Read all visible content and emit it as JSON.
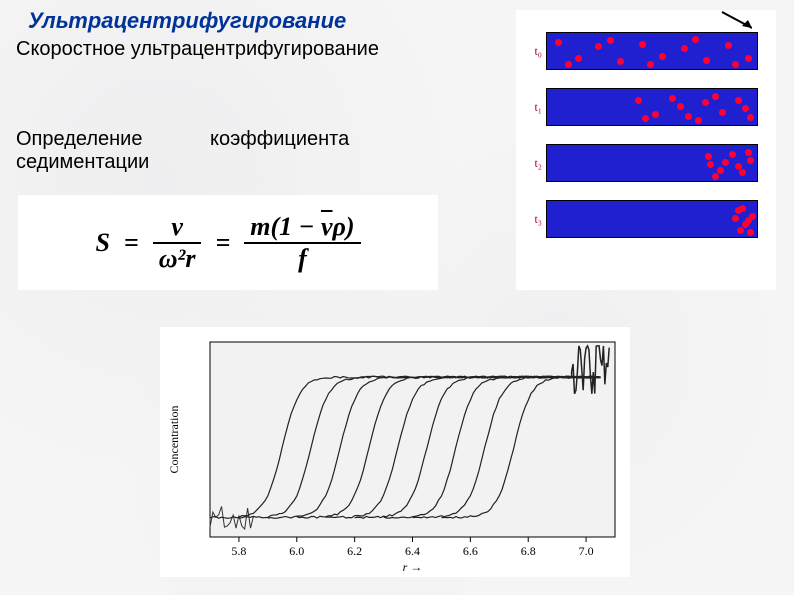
{
  "title": "Ультрацентрифугирование",
  "subtitle": "Скоростное ультрацентрифугирование",
  "definition_left": "Определение",
  "definition_bottom": "седиментации",
  "definition_right": "коэффициента",
  "formula": {
    "S": "S",
    "eq": "=",
    "frac1_num": "v",
    "frac1_den": "ω²r",
    "frac2_num_prefix": "m(1 −",
    "frac2_num_vbar": "v",
    "frac2_num_suffix": "ρ)",
    "frac2_den": "f"
  },
  "tubes": {
    "labels": [
      "t₀",
      "t₁",
      "t₂",
      "t₃"
    ],
    "tube_bg": "#2020d0",
    "dot_color": "#ff0033",
    "dot_positions": [
      [
        [
          8,
          6
        ],
        [
          28,
          22
        ],
        [
          48,
          10
        ],
        [
          70,
          25
        ],
        [
          92,
          8
        ],
        [
          112,
          20
        ],
        [
          134,
          12
        ],
        [
          156,
          24
        ],
        [
          178,
          9
        ],
        [
          198,
          22
        ],
        [
          18,
          28
        ],
        [
          60,
          4
        ],
        [
          100,
          28
        ],
        [
          145,
          3
        ],
        [
          185,
          28
        ]
      ],
      [
        [
          88,
          8
        ],
        [
          105,
          22
        ],
        [
          122,
          6
        ],
        [
          138,
          24
        ],
        [
          155,
          10
        ],
        [
          172,
          20
        ],
        [
          188,
          8
        ],
        [
          200,
          25
        ],
        [
          95,
          26
        ],
        [
          130,
          14
        ],
        [
          165,
          4
        ],
        [
          195,
          16
        ],
        [
          148,
          28
        ]
      ],
      [
        [
          158,
          8
        ],
        [
          170,
          22
        ],
        [
          182,
          6
        ],
        [
          192,
          24
        ],
        [
          200,
          12
        ],
        [
          165,
          28
        ],
        [
          175,
          14
        ],
        [
          188,
          18
        ],
        [
          198,
          4
        ],
        [
          160,
          16
        ]
      ],
      [
        [
          188,
          6
        ],
        [
          195,
          20
        ],
        [
          202,
          12
        ],
        [
          190,
          26
        ],
        [
          198,
          16
        ],
        [
          185,
          14
        ],
        [
          200,
          28
        ],
        [
          192,
          4
        ]
      ]
    ]
  },
  "chart": {
    "ylabel": "Concentration",
    "xlabel": "r →",
    "xticks": [
      5.8,
      6.0,
      6.2,
      6.4,
      6.6,
      6.8,
      7.0
    ],
    "xlim": [
      5.7,
      7.1
    ],
    "plateau_y": 0.82,
    "baseline_y": 0.1,
    "curves_x50": [
      5.95,
      6.05,
      6.15,
      6.25,
      6.35,
      6.45,
      6.55,
      6.65,
      6.75
    ],
    "steepness": 0.03
  }
}
